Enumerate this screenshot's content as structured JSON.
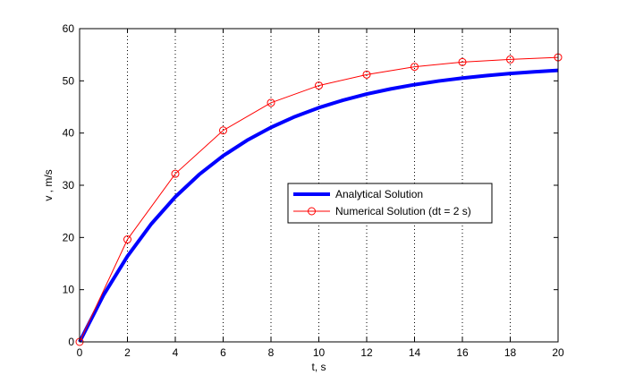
{
  "chart_data": {
    "type": "line",
    "title": "",
    "xlabel": "t, s",
    "ylabel": "v , m/s",
    "xlim": [
      0,
      20
    ],
    "ylim": [
      0,
      60
    ],
    "xticks": [
      0,
      2,
      4,
      6,
      8,
      10,
      12,
      14,
      16,
      18,
      20
    ],
    "yticks": [
      0,
      10,
      20,
      30,
      40,
      50,
      60
    ],
    "grid": "x-dotted",
    "legend": "center-right",
    "series": [
      {
        "name": "Analytical Solution",
        "color": "#0000ff",
        "marker": "none",
        "x": [
          0,
          1,
          2,
          3,
          4,
          5,
          6,
          7,
          8,
          9,
          10,
          11,
          12,
          13,
          14,
          15,
          16,
          17,
          18,
          19,
          20
        ],
        "y": [
          0,
          8.96,
          16.41,
          22.61,
          27.77,
          32.06,
          35.64,
          38.61,
          41.08,
          43.14,
          44.86,
          46.28,
          47.47,
          48.45,
          49.27,
          49.96,
          50.53,
          51.0,
          51.4,
          51.73,
          52.0
        ]
      },
      {
        "name": "Numerical Solution (dt = 2 s)",
        "color": "#ff0000",
        "marker": "circle",
        "x": [
          0,
          2,
          4,
          6,
          8,
          10,
          12,
          14,
          16,
          18,
          20
        ],
        "y": [
          0,
          19.62,
          32.2,
          40.5,
          45.8,
          49.1,
          51.2,
          52.7,
          53.6,
          54.1,
          54.5
        ]
      }
    ]
  }
}
